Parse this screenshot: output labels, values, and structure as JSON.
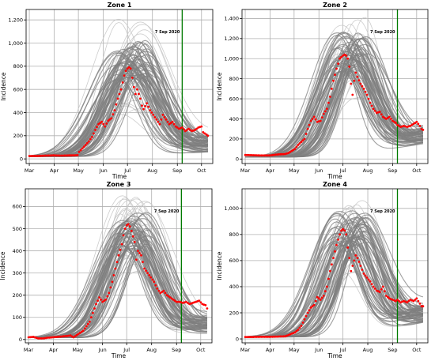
{
  "chart_data": [
    {
      "type": "line",
      "title": "Zone 1",
      "xlabel": "Time",
      "ylabel": "Incidence",
      "x_ticks": [
        "Mar",
        "Apr",
        "May",
        "Jun",
        "Jul",
        "Aug",
        "Sep",
        "Oct"
      ],
      "y_ticks": [
        "0",
        "200",
        "400",
        "600",
        "800",
        "1,000",
        "1,200"
      ],
      "ylim": [
        -40,
        1290
      ],
      "grid": true,
      "annotation": "7 Sep 2020",
      "vline_day": 190,
      "trajectory_envelope": {
        "count": 80,
        "peak_day": [
          108,
          146
        ],
        "peak_height": [
          380,
          1210
        ],
        "width_days": [
          22,
          36
        ],
        "baseline_start": 20,
        "baseline_end": [
          60,
          200
        ]
      },
      "observed": {
        "color": "#ff0000",
        "points": [
          [
            0,
            25
          ],
          [
            10,
            25
          ],
          [
            20,
            28
          ],
          [
            30,
            30
          ],
          [
            40,
            28
          ],
          [
            50,
            30
          ],
          [
            60,
            32
          ],
          [
            62,
            60
          ],
          [
            66,
            90
          ],
          [
            70,
            120
          ],
          [
            74,
            150
          ],
          [
            78,
            190
          ],
          [
            82,
            250
          ],
          [
            86,
            300
          ],
          [
            90,
            320
          ],
          [
            94,
            280
          ],
          [
            98,
            330
          ],
          [
            102,
            350
          ],
          [
            106,
            420
          ],
          [
            110,
            520
          ],
          [
            114,
            600
          ],
          [
            118,
            720
          ],
          [
            120,
            760
          ],
          [
            122,
            780
          ],
          [
            124,
            790
          ],
          [
            126,
            780
          ],
          [
            128,
            700
          ],
          [
            130,
            620
          ],
          [
            132,
            560
          ],
          [
            134,
            600
          ],
          [
            136,
            560
          ],
          [
            138,
            520
          ],
          [
            140,
            460
          ],
          [
            142,
            430
          ],
          [
            146,
            480
          ],
          [
            150,
            420
          ],
          [
            154,
            380
          ],
          [
            158,
            340
          ],
          [
            162,
            300
          ],
          [
            166,
            380
          ],
          [
            170,
            340
          ],
          [
            174,
            300
          ],
          [
            178,
            320
          ],
          [
            182,
            280
          ],
          [
            186,
            260
          ],
          [
            190,
            270
          ],
          [
            194,
            240
          ],
          [
            198,
            260
          ],
          [
            202,
            240
          ],
          [
            206,
            250
          ],
          [
            210,
            270
          ],
          [
            214,
            280
          ],
          [
            216,
            230
          ],
          [
            220,
            210
          ],
          [
            222,
            200
          ]
        ]
      },
      "colors": {
        "trajectory": "#7f7f7f",
        "trajectory_light": "#c8c8c8",
        "vline": "#007a00"
      }
    },
    {
      "type": "line",
      "title": "Zone 2",
      "xlabel": "Time",
      "ylabel": "Incidence",
      "x_ticks": [
        "Mar",
        "Apr",
        "May",
        "Jun",
        "Jul",
        "Aug",
        "Sep",
        "Oct"
      ],
      "y_ticks": [
        "0",
        "200",
        "400",
        "600",
        "800",
        "1,000",
        "1,200",
        "1,400"
      ],
      "ylim": [
        -45,
        1490
      ],
      "grid": true,
      "annotation": "7 Sep 2020",
      "vline_day": 190,
      "trajectory_envelope": {
        "count": 80,
        "peak_day": [
          112,
          150
        ],
        "peak_height": [
          560,
          1440
        ],
        "width_days": [
          20,
          34
        ],
        "baseline_start": 20,
        "baseline_end": [
          150,
          320
        ]
      },
      "observed": {
        "color": "#ff0000",
        "points": [
          [
            0,
            40
          ],
          [
            10,
            38
          ],
          [
            20,
            35
          ],
          [
            30,
            35
          ],
          [
            40,
            45
          ],
          [
            50,
            50
          ],
          [
            54,
            60
          ],
          [
            58,
            80
          ],
          [
            62,
            100
          ],
          [
            66,
            140
          ],
          [
            70,
            170
          ],
          [
            74,
            200
          ],
          [
            78,
            300
          ],
          [
            82,
            380
          ],
          [
            86,
            420
          ],
          [
            90,
            370
          ],
          [
            94,
            380
          ],
          [
            98,
            450
          ],
          [
            102,
            500
          ],
          [
            106,
            620
          ],
          [
            110,
            780
          ],
          [
            114,
            900
          ],
          [
            118,
            1000
          ],
          [
            122,
            1030
          ],
          [
            124,
            1040
          ],
          [
            126,
            1030
          ],
          [
            128,
            1000
          ],
          [
            130,
            920
          ],
          [
            132,
            750
          ],
          [
            134,
            640
          ],
          [
            136,
            780
          ],
          [
            138,
            860
          ],
          [
            140,
            820
          ],
          [
            144,
            750
          ],
          [
            148,
            700
          ],
          [
            152,
            640
          ],
          [
            156,
            560
          ],
          [
            160,
            500
          ],
          [
            164,
            460
          ],
          [
            168,
            470
          ],
          [
            172,
            420
          ],
          [
            176,
            400
          ],
          [
            180,
            420
          ],
          [
            184,
            380
          ],
          [
            188,
            360
          ],
          [
            190,
            340
          ],
          [
            194,
            320
          ],
          [
            198,
            330
          ],
          [
            202,
            320
          ],
          [
            206,
            330
          ],
          [
            210,
            350
          ],
          [
            214,
            370
          ],
          [
            218,
            330
          ],
          [
            220,
            300
          ],
          [
            222,
            290
          ]
        ]
      },
      "colors": {
        "trajectory": "#7f7f7f",
        "trajectory_light": "#c8c8c8",
        "vline": "#007a00"
      }
    },
    {
      "type": "line",
      "title": "Zone 3",
      "xlabel": "Time",
      "ylabel": "Incidence",
      "x_ticks": [
        "Mar",
        "Apr",
        "May",
        "Jun",
        "Jul",
        "Aug",
        "Sep",
        "Oct"
      ],
      "y_ticks": [
        "0",
        "100",
        "200",
        "300",
        "400",
        "500",
        "600"
      ],
      "ylim": [
        -15,
        680
      ],
      "grid": true,
      "annotation": "7 Sep 2020",
      "vline_day": 190,
      "trajectory_envelope": {
        "count": 80,
        "peak_day": [
          110,
          148
        ],
        "peak_height": [
          270,
          650
        ],
        "width_days": [
          22,
          36
        ],
        "baseline_start": 8,
        "baseline_end": [
          25,
          110
        ]
      },
      "observed": {
        "color": "#ff0000",
        "points": [
          [
            0,
            10
          ],
          [
            6,
            12
          ],
          [
            12,
            5
          ],
          [
            18,
            5
          ],
          [
            24,
            8
          ],
          [
            30,
            10
          ],
          [
            36,
            12
          ],
          [
            42,
            14
          ],
          [
            48,
            16
          ],
          [
            52,
            18
          ],
          [
            56,
            10
          ],
          [
            60,
            20
          ],
          [
            64,
            30
          ],
          [
            68,
            40
          ],
          [
            72,
            60
          ],
          [
            76,
            80
          ],
          [
            80,
            120
          ],
          [
            84,
            160
          ],
          [
            88,
            190
          ],
          [
            92,
            170
          ],
          [
            96,
            180
          ],
          [
            100,
            210
          ],
          [
            104,
            260
          ],
          [
            108,
            320
          ],
          [
            112,
            380
          ],
          [
            116,
            430
          ],
          [
            118,
            470
          ],
          [
            120,
            500
          ],
          [
            122,
            515
          ],
          [
            124,
            520
          ],
          [
            126,
            510
          ],
          [
            128,
            490
          ],
          [
            132,
            440
          ],
          [
            134,
            360
          ],
          [
            136,
            400
          ],
          [
            140,
            380
          ],
          [
            144,
            320
          ],
          [
            148,
            300
          ],
          [
            152,
            280
          ],
          [
            156,
            260
          ],
          [
            160,
            230
          ],
          [
            164,
            210
          ],
          [
            168,
            220
          ],
          [
            172,
            200
          ],
          [
            176,
            190
          ],
          [
            180,
            180
          ],
          [
            184,
            170
          ],
          [
            188,
            170
          ],
          [
            192,
            165
          ],
          [
            196,
            170
          ],
          [
            200,
            160
          ],
          [
            204,
            165
          ],
          [
            208,
            170
          ],
          [
            212,
            175
          ],
          [
            216,
            160
          ],
          [
            220,
            155
          ],
          [
            222,
            140
          ]
        ]
      },
      "colors": {
        "trajectory": "#7f7f7f",
        "trajectory_light": "#c8c8c8",
        "vline": "#007a00"
      }
    },
    {
      "type": "line",
      "title": "Zone 4",
      "xlabel": "Time",
      "ylabel": "Incidence",
      "x_ticks": [
        "Mar",
        "Apr",
        "May",
        "Jun",
        "Jul",
        "Aug",
        "Sep",
        "Oct"
      ],
      "y_ticks": [
        "0",
        "200",
        "400",
        "600",
        "800",
        "1,000"
      ],
      "ylim": [
        -30,
        1150
      ],
      "grid": true,
      "annotation": "7 Sep 2020",
      "vline_day": 190,
      "trajectory_envelope": {
        "count": 80,
        "peak_day": [
          110,
          150
        ],
        "peak_height": [
          500,
          1100
        ],
        "width_days": [
          20,
          34
        ],
        "baseline_start": 15,
        "baseline_end": [
          120,
          260
        ]
      },
      "observed": {
        "color": "#ff0000",
        "points": [
          [
            0,
            15
          ],
          [
            10,
            15
          ],
          [
            20,
            16
          ],
          [
            30,
            16
          ],
          [
            40,
            18
          ],
          [
            50,
            20
          ],
          [
            54,
            30
          ],
          [
            58,
            40
          ],
          [
            62,
            50
          ],
          [
            66,
            70
          ],
          [
            70,
            100
          ],
          [
            74,
            150
          ],
          [
            78,
            200
          ],
          [
            82,
            240
          ],
          [
            86,
            260
          ],
          [
            90,
            320
          ],
          [
            94,
            300
          ],
          [
            98,
            330
          ],
          [
            102,
            400
          ],
          [
            106,
            520
          ],
          [
            110,
            620
          ],
          [
            114,
            720
          ],
          [
            118,
            800
          ],
          [
            120,
            830
          ],
          [
            122,
            840
          ],
          [
            124,
            830
          ],
          [
            126,
            800
          ],
          [
            128,
            700
          ],
          [
            130,
            620
          ],
          [
            132,
            520
          ],
          [
            134,
            560
          ],
          [
            138,
            640
          ],
          [
            140,
            620
          ],
          [
            144,
            560
          ],
          [
            148,
            500
          ],
          [
            152,
            470
          ],
          [
            156,
            440
          ],
          [
            160,
            400
          ],
          [
            164,
            370
          ],
          [
            168,
            360
          ],
          [
            172,
            400
          ],
          [
            176,
            330
          ],
          [
            180,
            310
          ],
          [
            184,
            300
          ],
          [
            188,
            290
          ],
          [
            190,
            300
          ],
          [
            194,
            280
          ],
          [
            198,
            290
          ],
          [
            202,
            280
          ],
          [
            206,
            300
          ],
          [
            210,
            290
          ],
          [
            214,
            310
          ],
          [
            218,
            270
          ],
          [
            220,
            250
          ],
          [
            222,
            250
          ]
        ]
      },
      "colors": {
        "trajectory": "#7f7f7f",
        "trajectory_light": "#c8c8c8",
        "vline": "#007a00"
      }
    }
  ]
}
